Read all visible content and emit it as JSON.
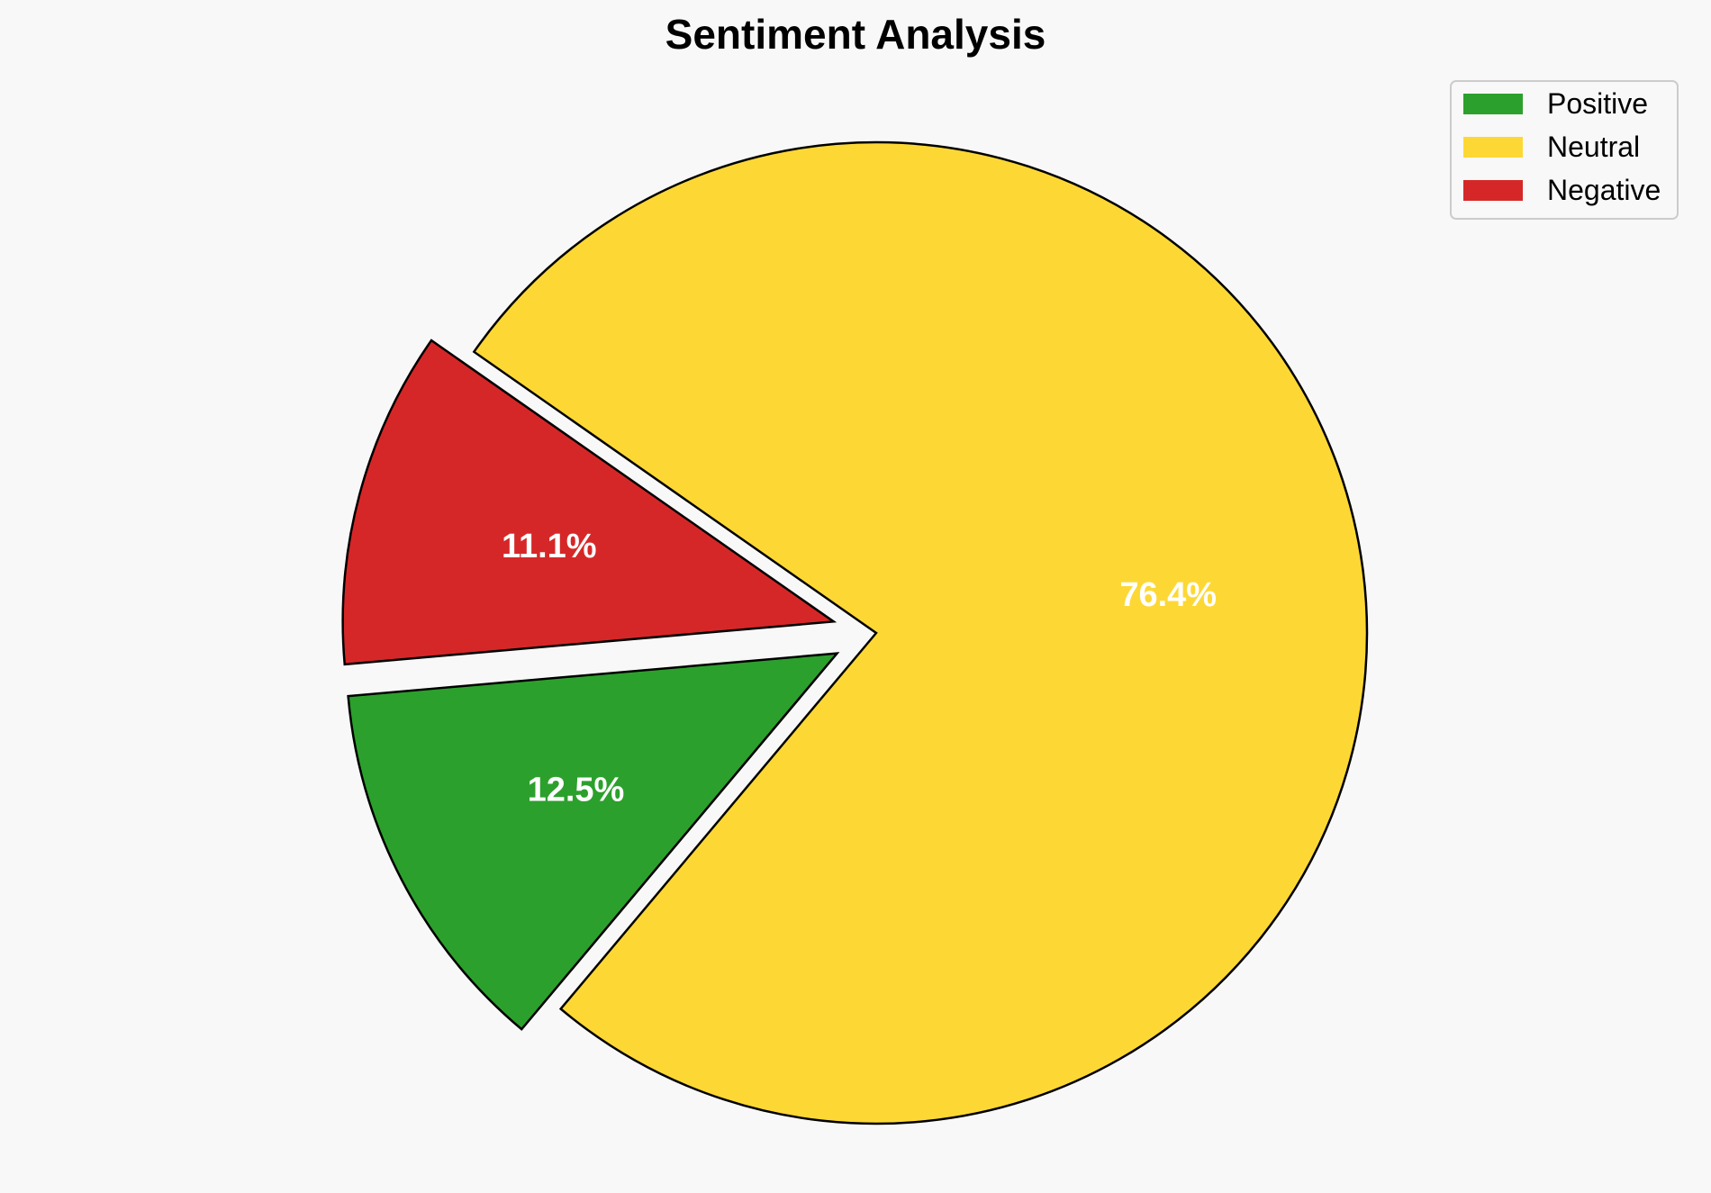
{
  "chart_data": {
    "type": "pie",
    "title": "Sentiment Analysis",
    "categories": [
      "Positive",
      "Neutral",
      "Negative"
    ],
    "values": [
      12.5,
      76.4,
      11.1
    ],
    "labels": [
      "12.5%",
      "76.4%",
      "11.1%"
    ],
    "exploded": [
      true,
      false,
      true
    ],
    "colors": [
      "#2ca02c",
      "#fdd835",
      "#d62728"
    ],
    "start_angle_deg": 185,
    "direction": "counterclockwise",
    "legend_position": "top-right",
    "slice_edge_color": "#000000",
    "label_color": "#ffffff"
  }
}
